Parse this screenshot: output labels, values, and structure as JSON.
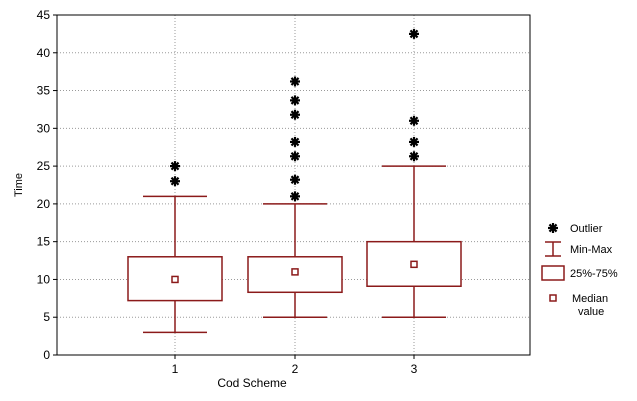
{
  "chart_data": {
    "type": "box",
    "xlabel": "Cod Scheme",
    "ylabel": "Time",
    "categories": [
      "1",
      "2",
      "3"
    ],
    "ylim": [
      0,
      45
    ],
    "yticks": [
      0,
      5,
      10,
      15,
      20,
      25,
      30,
      35,
      40,
      45
    ],
    "grid": true,
    "legend_position": "right",
    "colors": {
      "box": "#8b1a1a",
      "outlier": "#000000",
      "grid": "#9a9a9a"
    },
    "series": [
      {
        "category": "1",
        "min": 3,
        "q1": 7.2,
        "median": 10,
        "q3": 13,
        "max": 21,
        "outliers": [
          23,
          25
        ]
      },
      {
        "category": "2",
        "min": 5,
        "q1": 8.3,
        "median": 11,
        "q3": 13,
        "max": 20,
        "outliers": [
          21,
          23.2,
          26.3,
          28.2,
          31.8,
          33.7,
          36.2
        ]
      },
      {
        "category": "3",
        "min": 5,
        "q1": 9.1,
        "median": 12,
        "q3": 15,
        "max": 25,
        "outliers": [
          26.3,
          28.2,
          31,
          42.5
        ]
      }
    ],
    "legend": [
      {
        "label": "Outlier",
        "icon": "outlier-star-icon"
      },
      {
        "label": "Min-Max",
        "icon": "whisker-icon"
      },
      {
        "label": "25%-75%",
        "icon": "box-icon"
      },
      {
        "label": "Median value",
        "icon": "median-square-icon"
      }
    ]
  }
}
